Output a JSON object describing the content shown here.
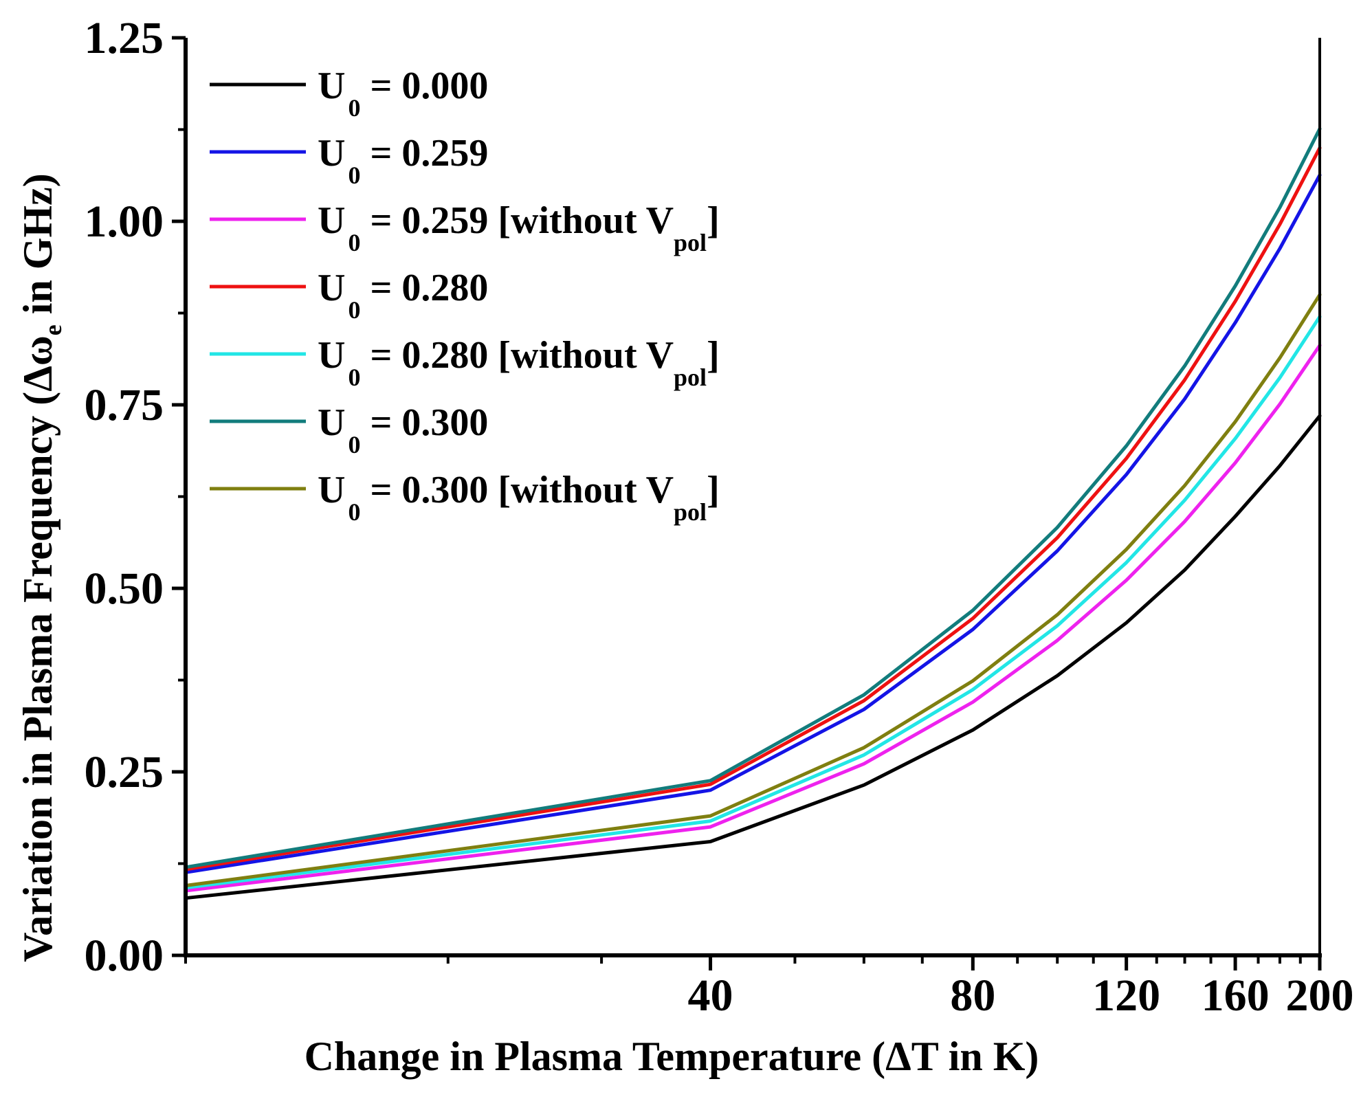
{
  "chart_data": {
    "type": "line",
    "title": "",
    "xlabel": "Change in Plasma Temperature (ΔT in K)",
    "ylabel_main": "Variation in Plasma Frequency (Δω",
    "ylabel_sub": "e",
    "ylabel_tail": " in GHz)",
    "xscale": "log",
    "xlim": [
      10,
      200
    ],
    "ylim": [
      0,
      1.25
    ],
    "x_ticks": [
      40,
      80,
      120,
      160,
      200
    ],
    "x_tick_labels": [
      "40",
      "80",
      "120",
      "160",
      "200"
    ],
    "y_ticks": [
      0,
      0.25,
      0.5,
      0.75,
      1.0,
      1.25
    ],
    "y_tick_labels": [
      "0.00",
      "0.25",
      "0.50",
      "0.75",
      "1.00",
      "1.25"
    ],
    "legend_position": "top-left",
    "x": [
      10,
      40,
      60,
      80,
      100,
      120,
      140,
      160,
      180,
      200
    ],
    "series": [
      {
        "name": "U0 = 0.000",
        "label_main": "U",
        "label_sub": "0",
        "label_rest": " = 0.000",
        "label_suffix": "",
        "label_suffix_sub": "",
        "label_close": "",
        "color": "#000000",
        "values": [
          0.078,
          0.155,
          0.232,
          0.307,
          0.381,
          0.453,
          0.525,
          0.598,
          0.667,
          0.735
        ]
      },
      {
        "name": "U0 = 0.259",
        "label_main": "U",
        "label_sub": "0",
        "label_rest": " = 0.259",
        "label_suffix": "",
        "label_suffix_sub": "",
        "label_close": "",
        "color": "#1414e6",
        "values": [
          0.113,
          0.225,
          0.335,
          0.444,
          0.551,
          0.655,
          0.758,
          0.862,
          0.963,
          1.063
        ]
      },
      {
        "name": "U0 = 0.259 [without Vpol]",
        "label_main": "U",
        "label_sub": "0",
        "label_rest": " = 0.259 [without V",
        "label_suffix": "",
        "label_suffix_sub": "pol",
        "label_close": "]",
        "color": "#ee22ee",
        "values": [
          0.088,
          0.175,
          0.261,
          0.345,
          0.429,
          0.511,
          0.591,
          0.671,
          0.751,
          0.831
        ]
      },
      {
        "name": "U0 = 0.280",
        "label_main": "U",
        "label_sub": "0",
        "label_rest": " = 0.280",
        "label_suffix": "",
        "label_suffix_sub": "",
        "label_close": "",
        "color": "#ee1111",
        "values": [
          0.117,
          0.233,
          0.347,
          0.459,
          0.569,
          0.677,
          0.784,
          0.891,
          0.996,
          1.1
        ]
      },
      {
        "name": "U0 = 0.280 [without Vpol]",
        "label_main": "U",
        "label_sub": "0",
        "label_rest": " = 0.280 [without V",
        "label_suffix": "",
        "label_suffix_sub": "pol",
        "label_close": "]",
        "color": "#22e6e6",
        "values": [
          0.092,
          0.183,
          0.273,
          0.362,
          0.449,
          0.535,
          0.62,
          0.704,
          0.787,
          0.87
        ]
      },
      {
        "name": "U0 = 0.300",
        "label_main": "U",
        "label_sub": "0",
        "label_rest": " = 0.300",
        "label_suffix": "",
        "label_suffix_sub": "",
        "label_close": "",
        "color": "#127c7c",
        "values": [
          0.12,
          0.238,
          0.355,
          0.47,
          0.583,
          0.694,
          0.803,
          0.912,
          1.019,
          1.126
        ]
      },
      {
        "name": "U0 = 0.300 [without Vpol]",
        "label_main": "U",
        "label_sub": "0",
        "label_rest": " = 0.300 [without V",
        "label_suffix": "",
        "label_suffix_sub": "pol",
        "label_close": "]",
        "color": "#7f7f10",
        "values": [
          0.095,
          0.19,
          0.283,
          0.374,
          0.464,
          0.553,
          0.64,
          0.727,
          0.814,
          0.9
        ]
      }
    ]
  }
}
